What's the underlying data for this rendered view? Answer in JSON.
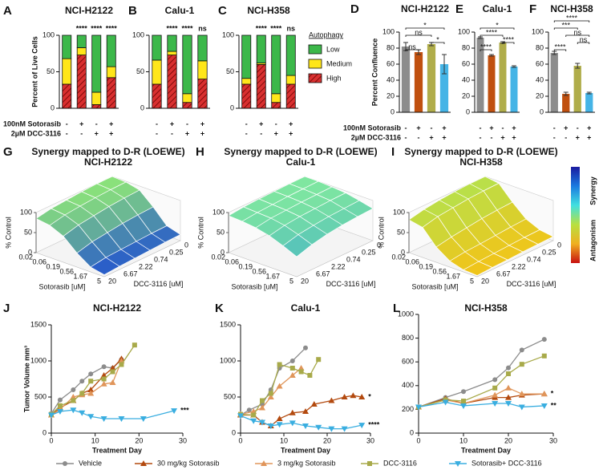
{
  "chart_data": [
    {
      "type": "stacked-bar",
      "panel": "A",
      "title": "NCI-H2122",
      "ylabel": "Percent of Live Cells",
      "ylim": [
        0,
        100
      ],
      "yticks": [
        0,
        50,
        100
      ],
      "row_labels": [
        "100nM Sotorasib",
        "2µM DCC-3116"
      ],
      "rows": [
        [
          "-",
          "+",
          "-",
          "+"
        ],
        [
          "-",
          "-",
          "+",
          "+"
        ]
      ],
      "series": [
        {
          "color": "#d93030",
          "hatch": true,
          "values": [
            33,
            73,
            5,
            42
          ]
        },
        {
          "color": "#ffe61a",
          "values": [
            35,
            10,
            17,
            15
          ]
        },
        {
          "color": "#3cb84a",
          "values": [
            32,
            17,
            78,
            43
          ]
        }
      ],
      "significance": [
        {
          "index": 1,
          "label": "****"
        },
        {
          "index": 2,
          "label": "****"
        },
        {
          "index": 3,
          "label": "****"
        }
      ]
    },
    {
      "type": "stacked-bar",
      "panel": "B",
      "title": "Calu-1",
      "ylim": [
        0,
        100
      ],
      "yticks": [
        0,
        50,
        100
      ],
      "rows": [
        [
          "-",
          "+",
          "-",
          "+"
        ],
        [
          "-",
          "-",
          "+",
          "+"
        ]
      ],
      "series": [
        {
          "color": "#d93030",
          "hatch": true,
          "values": [
            33,
            73,
            8,
            40
          ]
        },
        {
          "color": "#ffe61a",
          "values": [
            33,
            5,
            12,
            25
          ]
        },
        {
          "color": "#3cb84a",
          "values": [
            34,
            22,
            80,
            35
          ]
        }
      ],
      "significance": [
        {
          "index": 1,
          "label": "****"
        },
        {
          "index": 2,
          "label": "****"
        },
        {
          "index": 3,
          "label": "ns"
        }
      ]
    },
    {
      "type": "stacked-bar",
      "panel": "C",
      "title": "NCI-H358",
      "ylim": [
        0,
        100
      ],
      "yticks": [
        0,
        50,
        100
      ],
      "legend_title": "Autophagy",
      "rows": [
        [
          "-",
          "+",
          "-",
          "+"
        ],
        [
          "-",
          "-",
          "+",
          "+"
        ]
      ],
      "series": [
        {
          "name": "High",
          "color": "#d93030",
          "hatch": true,
          "values": [
            33,
            60,
            8,
            33
          ]
        },
        {
          "name": "Medium",
          "color": "#ffe61a",
          "values": [
            8,
            2,
            12,
            12
          ]
        },
        {
          "name": "Low",
          "color": "#3cb84a",
          "values": [
            59,
            38,
            80,
            55
          ]
        }
      ],
      "significance": [
        {
          "index": 1,
          "label": "****"
        },
        {
          "index": 2,
          "label": "****"
        },
        {
          "index": 3,
          "label": "ns"
        }
      ]
    },
    {
      "type": "bar",
      "panel": "D",
      "title": "NCI-H2122",
      "ylabel": "Percent Confluence",
      "ylim": [
        0,
        100
      ],
      "yticks": [
        0,
        20,
        40,
        60,
        80,
        100
      ],
      "row_labels": [
        "100nM Sotorasib",
        "2µM DCC-3116"
      ],
      "rows": [
        [
          "-",
          "+",
          "-",
          "+"
        ],
        [
          "-",
          "-",
          "+",
          "+"
        ]
      ],
      "colors": [
        "#8c8c8c",
        "#c0500f",
        "#b0ad4a",
        "#45b4e6"
      ],
      "values": [
        82,
        75,
        85,
        60
      ],
      "errors": [
        5,
        3,
        2,
        12
      ],
      "brackets": [
        {
          "from": 0,
          "to": 1,
          "label": "ns"
        },
        {
          "from": 2,
          "to": 3,
          "label": "*"
        },
        {
          "from": 0,
          "to": 2,
          "label": "ns"
        },
        {
          "from": 0,
          "to": 3,
          "label": "*"
        }
      ]
    },
    {
      "type": "bar",
      "panel": "E",
      "title": "Calu-1",
      "ylim": [
        0,
        100
      ],
      "yticks": [
        0,
        20,
        40,
        60,
        80,
        100
      ],
      "rows": [
        [
          "-",
          "+",
          "-",
          "+"
        ],
        [
          "-",
          "-",
          "+",
          "+"
        ]
      ],
      "colors": [
        "#8c8c8c",
        "#c0500f",
        "#b0ad4a",
        "#45b4e6"
      ],
      "values": [
        93,
        71,
        87,
        57
      ],
      "errors": [
        1,
        1,
        1,
        1
      ],
      "brackets": [
        {
          "from": 0,
          "to": 1,
          "label": "****"
        },
        {
          "from": 2,
          "to": 3,
          "label": "****"
        },
        {
          "from": 0,
          "to": 2,
          "label": "****"
        },
        {
          "from": 0,
          "to": 3,
          "label": "*"
        }
      ]
    },
    {
      "type": "bar",
      "panel": "F",
      "title": "NCI-H358",
      "ylim": [
        0,
        100
      ],
      "yticks": [
        0,
        20,
        40,
        60,
        80,
        100
      ],
      "rows": [
        [
          "-",
          "+",
          "-",
          "+"
        ],
        [
          "-",
          "-",
          "+",
          "+"
        ]
      ],
      "colors": [
        "#8c8c8c",
        "#c0500f",
        "#b0ad4a",
        "#45b4e6"
      ],
      "values": [
        74,
        23,
        58,
        24
      ],
      "errors": [
        2,
        2,
        3,
        1
      ],
      "brackets": [
        {
          "from": 0,
          "to": 1,
          "label": "****"
        },
        {
          "from": 2,
          "to": 3,
          "label": "ns"
        },
        {
          "from": 1,
          "to": 3,
          "label": "ns"
        },
        {
          "from": 0,
          "to": 2,
          "label": "***"
        },
        {
          "from": 0,
          "to": 3,
          "label": "****"
        }
      ]
    },
    {
      "type": "surface",
      "panel": "G",
      "title": "Synergy mapped to D-R (LOEWE)",
      "subtitle": "NCI-H2122",
      "xlabel": "Sotorasib [uM]",
      "ylabel": "DCC-3116 [uM]",
      "zlabel": "% Control",
      "xticks": [
        0.02,
        0.06,
        0.19,
        0.56,
        1.67,
        5
      ],
      "yticks": [
        0,
        0.25,
        0.74,
        2.22,
        6.67,
        20
      ],
      "zlim": [
        0,
        100
      ],
      "zticks": [
        0,
        50,
        100
      ],
      "colors": [
        "#1f4fd1",
        "#8be37a"
      ],
      "z": [
        [
          100,
          100,
          98,
          95,
          92,
          85
        ],
        [
          98,
          97,
          95,
          92,
          88,
          80
        ],
        [
          90,
          88,
          85,
          80,
          75,
          65
        ],
        [
          60,
          58,
          55,
          50,
          45,
          35
        ],
        [
          25,
          24,
          22,
          20,
          18,
          12
        ],
        [
          15,
          14,
          12,
          10,
          8,
          5
        ]
      ]
    },
    {
      "type": "surface",
      "panel": "H",
      "title": "Synergy mapped to D-R (LOEWE)",
      "subtitle": "Calu-1",
      "xlabel": "Sotorasib [uM]",
      "ylabel": "DCC-3116 [uM]",
      "zlabel": "% Control",
      "xticks": [
        0.02,
        0.06,
        0.19,
        0.56,
        1.67,
        5
      ],
      "yticks": [
        0,
        0.25,
        0.74,
        2.22,
        6.67,
        20
      ],
      "zlim": [
        0,
        100
      ],
      "zticks": [
        0,
        50,
        100
      ],
      "colors": [
        "#1a8fe0",
        "#7fe6a0"
      ],
      "z": [
        [
          100,
          100,
          99,
          98,
          96,
          92
        ],
        [
          100,
          99,
          98,
          96,
          94,
          90
        ],
        [
          98,
          97,
          96,
          94,
          92,
          86
        ],
        [
          95,
          94,
          92,
          90,
          86,
          78
        ],
        [
          88,
          86,
          84,
          80,
          75,
          65
        ],
        [
          80,
          78,
          75,
          70,
          62,
          50
        ]
      ]
    },
    {
      "type": "surface",
      "panel": "I",
      "title": "Synergy mapped to D-R (LOEWE)",
      "subtitle": "NCI-H358",
      "xlabel": "Sotorasib [uM]",
      "ylabel": "DCC-3116 [uM]",
      "zlabel": "% Control",
      "xticks": [
        0.02,
        0.06,
        0.19,
        0.56,
        1.67,
        5
      ],
      "yticks": [
        0,
        0.25,
        0.74,
        2.22,
        6.67,
        20
      ],
      "zlim": [
        0,
        100
      ],
      "zticks": [
        0,
        50,
        100
      ],
      "colors": [
        "#f2c418",
        "#b8e04a"
      ],
      "z": [
        [
          100,
          100,
          98,
          95,
          90,
          82
        ],
        [
          95,
          94,
          92,
          88,
          84,
          75
        ],
        [
          60,
          58,
          55,
          50,
          45,
          38
        ],
        [
          30,
          28,
          25,
          22,
          20,
          15
        ],
        [
          15,
          14,
          12,
          10,
          8,
          5
        ],
        [
          10,
          9,
          8,
          6,
          5,
          3
        ]
      ]
    },
    {
      "type": "line",
      "panel": "J",
      "title": "NCI-H2122",
      "xlabel": "Treatment Day",
      "ylabel": "Tumor Volume mm³",
      "xlim": [
        0,
        30
      ],
      "xticks": [
        0,
        10,
        20,
        30
      ],
      "ylim": [
        0,
        1500
      ],
      "yticks": [
        0,
        500,
        1000,
        1500
      ],
      "series": [
        {
          "name": "Vehicle",
          "color": "#8c8c8c",
          "marker": "circle",
          "x": [
            0,
            2,
            5,
            7,
            9,
            12,
            14,
            16
          ],
          "values": [
            270,
            460,
            600,
            720,
            820,
            920,
            900,
            1020
          ]
        },
        {
          "name": "30 mg/kg Sotorasib",
          "color": "#b34a0f",
          "marker": "triangle",
          "x": [
            0,
            2,
            5,
            7,
            9,
            12,
            14,
            16
          ],
          "values": [
            250,
            350,
            450,
            550,
            600,
            800,
            900,
            1030
          ]
        },
        {
          "name": "3 mg/kg Sotorasib",
          "color": "#e0955a",
          "marker": "triangle",
          "x": [
            0,
            2,
            5,
            7,
            9,
            12,
            14,
            16
          ],
          "values": [
            250,
            330,
            500,
            530,
            550,
            680,
            700,
            1000
          ]
        },
        {
          "name": "DCC-3116",
          "color": "#a8aa4a",
          "marker": "square",
          "x": [
            0,
            2,
            5,
            7,
            9,
            12,
            14,
            16,
            19
          ],
          "values": [
            260,
            380,
            450,
            550,
            720,
            750,
            850,
            950,
            1220
          ]
        },
        {
          "name": "Sotorasib+ DCC-3116",
          "color": "#3aaee0",
          "marker": "down-triangle",
          "end_label": "***",
          "x": [
            0,
            2,
            5,
            7,
            9,
            12,
            16,
            21,
            28
          ],
          "values": [
            250,
            300,
            320,
            280,
            230,
            200,
            200,
            200,
            310
          ]
        }
      ]
    },
    {
      "type": "line",
      "panel": "K",
      "title": "Calu-1",
      "xlabel": "Treatment Day",
      "xlim": [
        0,
        30
      ],
      "xticks": [
        0,
        10,
        20,
        30
      ],
      "ylim": [
        0,
        1500
      ],
      "yticks": [
        0,
        500,
        1000,
        1500
      ],
      "series": [
        {
          "color": "#8c8c8c",
          "marker": "circle",
          "x": [
            0,
            2,
            5,
            7,
            9,
            12,
            15
          ],
          "values": [
            250,
            320,
            400,
            600,
            900,
            1000,
            1180
          ]
        },
        {
          "color": "#b34a0f",
          "marker": "triangle",
          "end_label": "*",
          "x": [
            0,
            3,
            5,
            7,
            9,
            12,
            15,
            17,
            21,
            24,
            26,
            28
          ],
          "values": [
            250,
            250,
            150,
            100,
            200,
            280,
            300,
            400,
            450,
            500,
            520,
            500
          ]
        },
        {
          "color": "#e0955a",
          "marker": "triangle",
          "x": [
            0,
            3,
            5,
            7,
            9,
            12,
            14
          ],
          "values": [
            260,
            300,
            350,
            500,
            650,
            800,
            900
          ]
        },
        {
          "color": "#a8aa4a",
          "marker": "square",
          "x": [
            0,
            3,
            5,
            7,
            9,
            12,
            14,
            16,
            18
          ],
          "values": [
            260,
            250,
            450,
            550,
            950,
            900,
            850,
            800,
            1020
          ]
        },
        {
          "color": "#3aaee0",
          "marker": "down-triangle",
          "end_label": "****",
          "x": [
            0,
            3,
            5,
            7,
            9,
            12,
            15,
            18,
            21,
            24,
            28
          ],
          "values": [
            240,
            170,
            150,
            100,
            120,
            140,
            100,
            80,
            60,
            60,
            110
          ]
        }
      ]
    },
    {
      "type": "line",
      "panel": "L",
      "title": "NCI-H358",
      "xlabel": "Treatment Day",
      "xlim": [
        0,
        30
      ],
      "xticks": [
        0,
        10,
        20,
        30
      ],
      "ylim": [
        0,
        1000
      ],
      "yticks": [
        0,
        200,
        400,
        600,
        800,
        1000
      ],
      "series": [
        {
          "color": "#8c8c8c",
          "marker": "circle",
          "x": [
            0,
            6,
            10,
            17,
            20,
            23,
            28
          ],
          "values": [
            220,
            300,
            350,
            450,
            550,
            700,
            790
          ]
        },
        {
          "color": "#b34a0f",
          "marker": "triangle",
          "end_label": "*",
          "x": [
            0,
            6,
            10,
            17,
            20,
            23,
            28
          ],
          "values": [
            220,
            290,
            250,
            300,
            300,
            320,
            330
          ]
        },
        {
          "color": "#e0955a",
          "marker": "triangle",
          "x": [
            0,
            6,
            10,
            17,
            20,
            23,
            28
          ],
          "values": [
            220,
            280,
            250,
            320,
            380,
            330,
            330
          ]
        },
        {
          "color": "#a8aa4a",
          "marker": "square",
          "x": [
            0,
            6,
            10,
            17,
            20,
            23,
            28
          ],
          "values": [
            220,
            280,
            270,
            380,
            500,
            580,
            650
          ]
        },
        {
          "color": "#3aaee0",
          "marker": "down-triangle",
          "end_label": "**",
          "x": [
            0,
            6,
            10,
            17,
            20,
            23,
            28
          ],
          "values": [
            220,
            260,
            230,
            250,
            250,
            220,
            230
          ]
        }
      ]
    }
  ],
  "colorbar": {
    "top": "Synergy",
    "bottom": "Antagonism"
  }
}
